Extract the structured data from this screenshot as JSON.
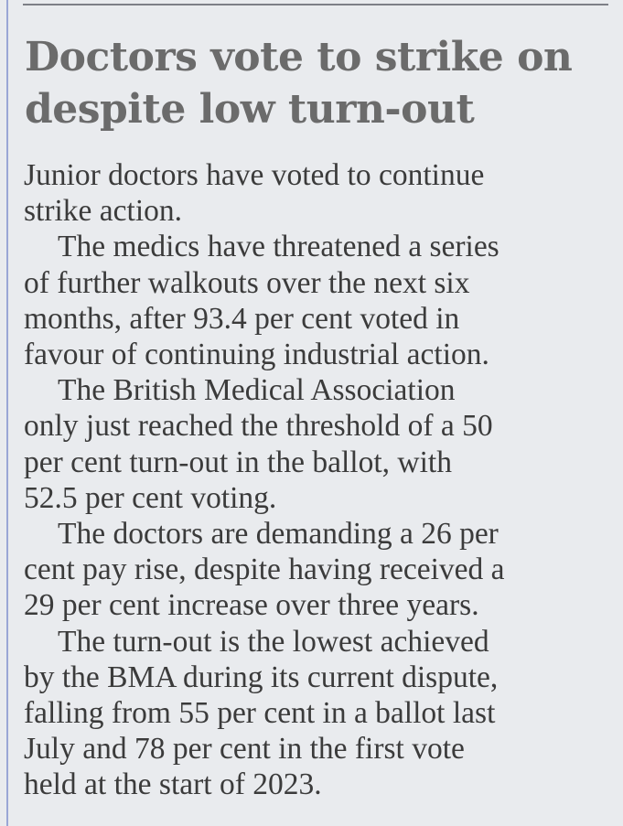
{
  "headline": [
    "Doctors vote to strike on",
    "despite low turn-out"
  ],
  "lines": [
    {
      "text": "Junior doctors have voted to continue",
      "indent": false
    },
    {
      "text": "strike action.",
      "indent": false
    },
    {
      "text": "The medics have threatened a series",
      "indent": true
    },
    {
      "text": "of further walkouts over the next six",
      "indent": false
    },
    {
      "text": "months, after 93.4 per cent voted in",
      "indent": false
    },
    {
      "text": "favour of continuing industrial action.",
      "indent": false
    },
    {
      "text": "The British Medical Association",
      "indent": true
    },
    {
      "text": "only just reached the threshold of a 50",
      "indent": false
    },
    {
      "text": "per cent turn-out in the ballot, with",
      "indent": false
    },
    {
      "text": "52.5 per cent voting.",
      "indent": false
    },
    {
      "text": "The doctors are demanding a 26 per",
      "indent": true
    },
    {
      "text": "cent pay rise, despite having received a",
      "indent": false
    },
    {
      "text": "29 per cent increase over three years.",
      "indent": false
    },
    {
      "text": "The turn-out is the lowest achieved",
      "indent": true
    },
    {
      "text": "by the BMA during its current dispute,",
      "indent": false
    },
    {
      "text": "falling from 55 per cent in a ballot last",
      "indent": false
    },
    {
      "text": "July and 78 per cent in the first vote",
      "indent": false
    },
    {
      "text": "held at the start of 2023.",
      "indent": false
    }
  ]
}
